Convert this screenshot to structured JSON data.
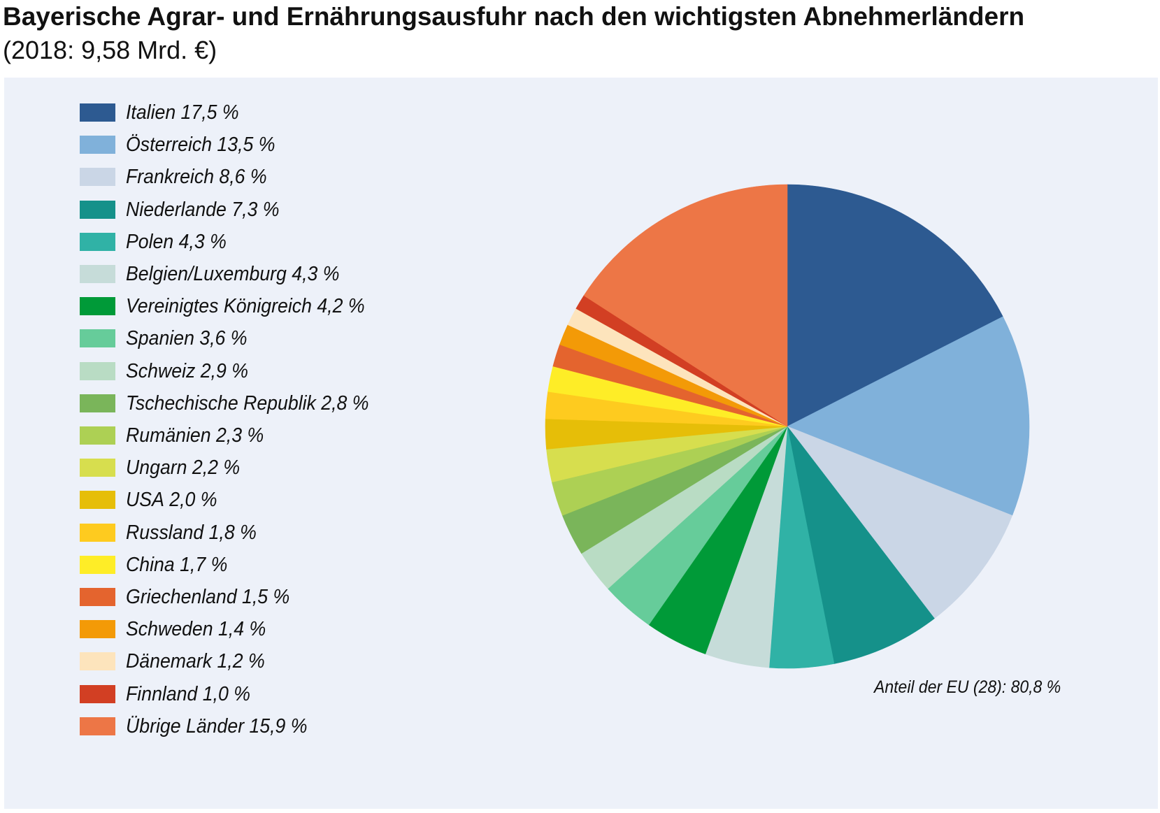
{
  "header": {
    "title": "Bayerische Agrar- und Ernährungsausfuhr nach den wichtigsten Abnehmerländern",
    "subtitle": "(2018: 9,58 Mrd. €)"
  },
  "chart_data": {
    "type": "pie",
    "title": "Bayerische Agrar- und Ernährungsausfuhr nach den wichtigsten Abnehmerländern",
    "subtitle": "(2018: 9,58 Mrd. €)",
    "legend_placement": "left",
    "annotation": "Anteil der EU (28): 80,8 %",
    "slices": [
      {
        "label": "Italien",
        "value": 17.5,
        "value_label": "17,5 %",
        "color": "#2d5a91"
      },
      {
        "label": "Österreich",
        "value": 13.5,
        "value_label": "13,5 %",
        "color": "#80b1da"
      },
      {
        "label": "Frankreich",
        "value": 8.6,
        "value_label": "8,6 %",
        "color": "#cad6e6"
      },
      {
        "label": "Niederlande",
        "value": 7.3,
        "value_label": "7,3 %",
        "color": "#15918a"
      },
      {
        "label": "Polen",
        "value": 4.3,
        "value_label": "4,3 %",
        "color": "#30b2a6"
      },
      {
        "label": "Belgien/Luxemburg",
        "value": 4.3,
        "value_label": "4,3 %",
        "color": "#c6dcd9"
      },
      {
        "label": "Vereinigtes Königreich",
        "value": 4.2,
        "value_label": "4,2 %",
        "color": "#009a38"
      },
      {
        "label": "Spanien",
        "value": 3.6,
        "value_label": "3,6 %",
        "color": "#66cc9a"
      },
      {
        "label": "Schweiz",
        "value": 2.9,
        "value_label": "2,9 %",
        "color": "#b9dcc4"
      },
      {
        "label": "Tschechische Republik",
        "value": 2.8,
        "value_label": "2,8 %",
        "color": "#7ab55a"
      },
      {
        "label": "Rumänien",
        "value": 2.3,
        "value_label": "2,3 %",
        "color": "#add054"
      },
      {
        "label": "Ungarn",
        "value": 2.2,
        "value_label": "2,2 %",
        "color": "#d7de4e"
      },
      {
        "label": "USA",
        "value": 2.0,
        "value_label": "2,0 %",
        "color": "#e6be08"
      },
      {
        "label": "Russland",
        "value": 1.8,
        "value_label": "1,8 %",
        "color": "#fecb1f"
      },
      {
        "label": "China",
        "value": 1.7,
        "value_label": "1,7 %",
        "color": "#feed27"
      },
      {
        "label": "Griechenland",
        "value": 1.5,
        "value_label": "1,5 %",
        "color": "#e4642e"
      },
      {
        "label": "Schweden",
        "value": 1.4,
        "value_label": "1,4 %",
        "color": "#f39a07"
      },
      {
        "label": "Dänemark",
        "value": 1.2,
        "value_label": "1,2 %",
        "color": "#fde4bc"
      },
      {
        "label": "Finnland",
        "value": 1.0,
        "value_label": "1,0 %",
        "color": "#d23f23"
      },
      {
        "label": "Übrige Länder",
        "value": 15.9,
        "value_label": "15,9 %",
        "color": "#ed7646"
      }
    ]
  }
}
